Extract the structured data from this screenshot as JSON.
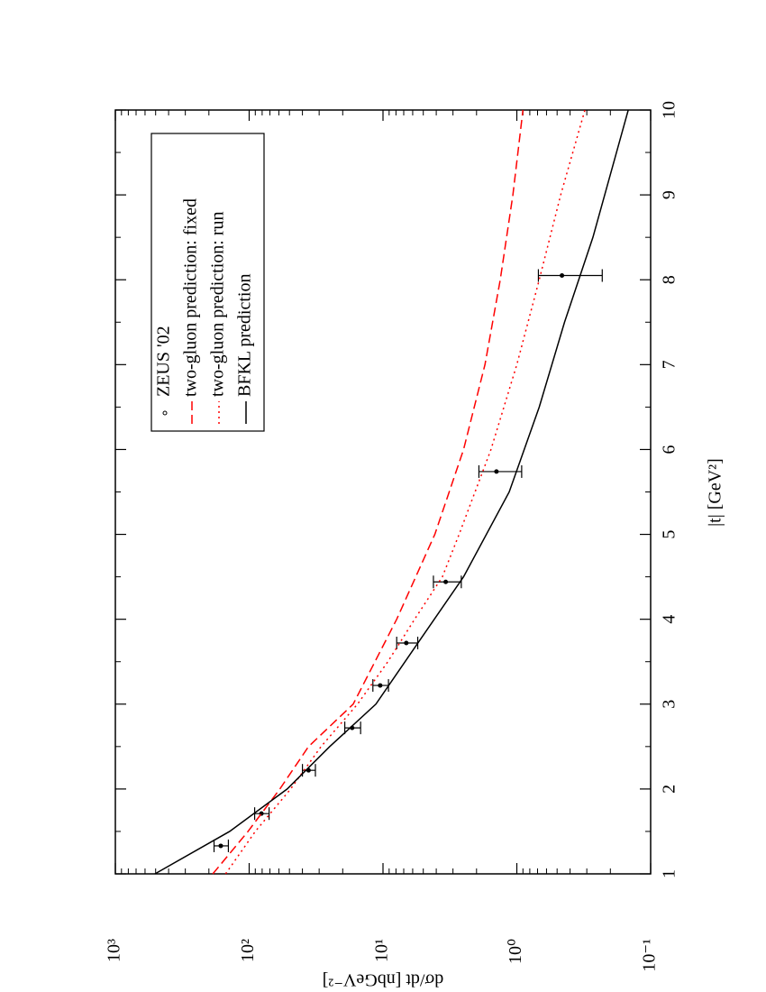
{
  "chart_data": {
    "type": "line",
    "xlabel": "|t|   [GeV²]",
    "ylabel": "dσ/dt   [nbGeV⁻²]",
    "xlim": [
      1,
      10
    ],
    "xticks": [
      1,
      2,
      3,
      4,
      5,
      6,
      7,
      8,
      9,
      10
    ],
    "ylim": [
      0.1,
      1000
    ],
    "yticks": [
      {
        "value": 0.1,
        "label": "10⁻¹"
      },
      {
        "value": 1,
        "label": "10⁰"
      },
      {
        "value": 10,
        "label": "10¹"
      },
      {
        "value": 100,
        "label": "10²"
      },
      {
        "value": 1000,
        "label": "10³"
      }
    ],
    "log_y": true,
    "legend": "upper right",
    "series": [
      {
        "name": "ZEUS  '02",
        "style": "points",
        "color": "#000000",
        "x": [
          1.33,
          1.71,
          2.22,
          2.72,
          3.22,
          3.72,
          4.44,
          5.74,
          8.05
        ],
        "values": [
          163,
          81,
          36,
          17,
          10.5,
          6.7,
          3.4,
          1.42,
          0.46
        ],
        "errors": [
          20,
          10,
          4,
          2.3,
          1.4,
          1.2,
          0.8,
          0.5,
          0.23
        ]
      },
      {
        "name": "two-gluon prediction: fixed",
        "style": "dashed",
        "color": "#ff0000",
        "x": [
          1,
          1.5,
          2,
          2.5,
          3,
          4,
          5,
          6,
          7,
          8,
          9,
          10
        ],
        "values": [
          187,
          102,
          59,
          36,
          16.7,
          7.9,
          4.1,
          2.5,
          1.73,
          1.33,
          1.07,
          0.9
        ]
      },
      {
        "name": "two-gluon prediction: run",
        "style": "dotted",
        "color": "#ff0000",
        "x": [
          1,
          1.5,
          2,
          2.5,
          3,
          3.5,
          4,
          4.5,
          5,
          6,
          7,
          8,
          9,
          10
        ],
        "values": [
          150,
          90,
          49,
          29,
          15.5,
          9.2,
          5.8,
          3.6,
          2.7,
          1.56,
          1.0,
          0.68,
          0.47,
          0.31
        ]
      },
      {
        "name": "BFKL prediction",
        "style": "solid",
        "color": "#000000",
        "x": [
          1,
          1.5,
          2,
          2.5,
          3,
          3.7,
          4.5,
          5.5,
          6.5,
          7.5,
          8.5,
          9.5,
          10
        ],
        "values": [
          506,
          140,
          52,
          25,
          11.3,
          5.6,
          2.5,
          1.14,
          0.68,
          0.44,
          0.27,
          0.18,
          0.147
        ]
      }
    ]
  }
}
